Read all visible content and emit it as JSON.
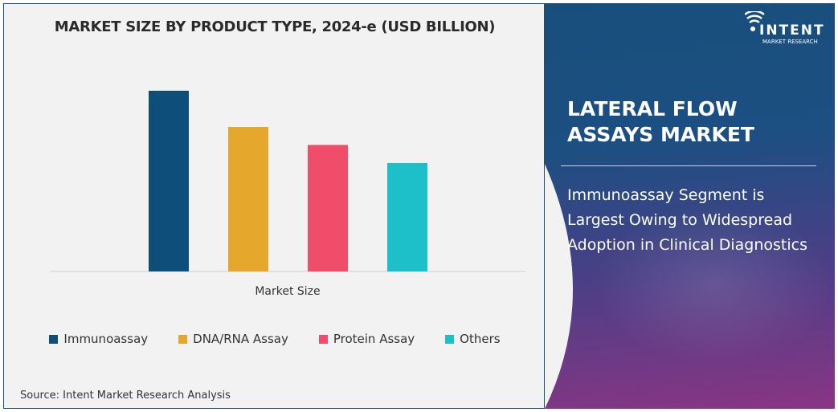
{
  "chart_data": {
    "type": "bar",
    "title": "MARKET SIZE BY PRODUCT TYPE, 2024-e (USD BILLION)",
    "xlabel": "Market Size",
    "ylabel": "",
    "categories": [
      "Market Size"
    ],
    "series": [
      {
        "name": "Immunoassay",
        "values": [
          1.0
        ],
        "color": "#0d4f7a"
      },
      {
        "name": "DNA/RNA Assay",
        "values": [
          0.8
        ],
        "color": "#e5a82c"
      },
      {
        "name": "Protein Assay",
        "values": [
          0.7
        ],
        "color": "#ef4d69"
      },
      {
        "name": "Others",
        "values": [
          0.6
        ],
        "color": "#1dbfc8"
      }
    ],
    "value_note": "relative bar heights; no axis values printed",
    "grid": false,
    "legend_position": "bottom"
  },
  "source": "Source: Intent Market Research Analysis",
  "panel": {
    "title": "LATERAL FLOW ASSAYS MARKET",
    "description": "Immunoassay Segment is Largest Owing to Widespread Adoption in Clinical Diagnostics",
    "logo": {
      "name": "INTENT",
      "tagline": "MARKET RESEARCH",
      "icon": "signal-waves-icon"
    }
  }
}
